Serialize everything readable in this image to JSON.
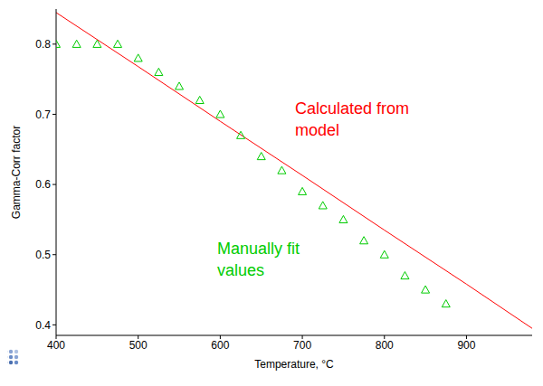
{
  "chart_data": {
    "type": "line",
    "x_label": "Temperature, °C",
    "y_label": "Gamma-Corr factor",
    "xlim": [
      400,
      980
    ],
    "xticks": [
      400,
      500,
      600,
      700,
      800,
      900
    ],
    "ylim": [
      0.385,
      0.85
    ],
    "yticks": [
      0.4,
      0.5,
      0.6,
      0.7,
      0.8
    ],
    "grid": false,
    "series": [
      {
        "type": "line",
        "color": "#ff0000",
        "line_style": "solid",
        "x": [
          400,
          500,
          600,
          700,
          800,
          900,
          980
        ],
        "values": [
          0.845,
          0.768,
          0.69,
          0.613,
          0.535,
          0.458,
          0.395
        ]
      },
      {
        "type": "scatter",
        "color": "#00cc00",
        "marker": "triangle",
        "x": [
          400,
          425,
          450,
          475,
          500,
          525,
          550,
          575,
          600,
          625,
          650,
          675,
          700,
          725,
          750,
          775,
          800,
          825,
          850,
          875
        ],
        "values": [
          0.8,
          0.8,
          0.8,
          0.8,
          0.78,
          0.76,
          0.74,
          0.72,
          0.7,
          0.67,
          0.64,
          0.62,
          0.59,
          0.57,
          0.55,
          0.52,
          0.5,
          0.47,
          0.45,
          0.43
        ]
      }
    ],
    "annotations": [
      {
        "text": "Calculated from model",
        "color": "#ff0000"
      },
      {
        "text": "Manually fit values",
        "color": "#00cc00"
      }
    ]
  }
}
